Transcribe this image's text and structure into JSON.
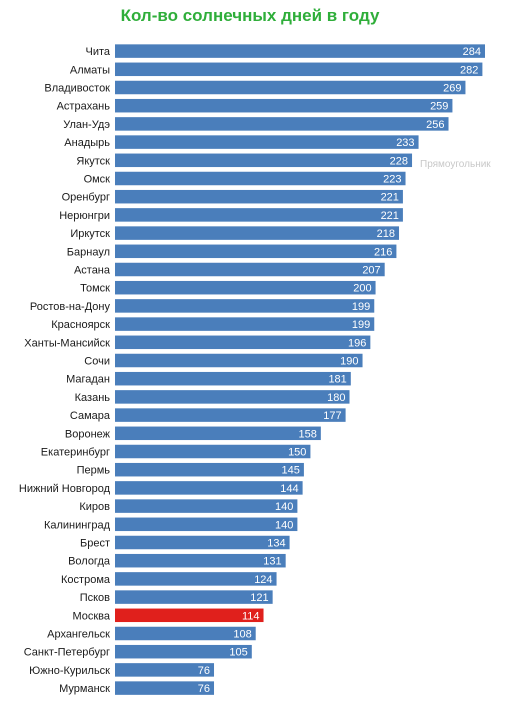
{
  "chart_data": {
    "type": "bar",
    "orientation": "horizontal",
    "title": "Кол-во солнечных дней в году",
    "categories": [
      "Чита",
      "Алматы",
      "Владивосток",
      "Астрахань",
      "Улан-Удэ",
      "Анадырь",
      "Якутск",
      "Омск",
      "Оренбург",
      "Нерюнгри",
      "Иркутск",
      "Барнаул",
      "Астана",
      "Томск",
      "Ростов-на-Дону",
      "Красноярск",
      "Ханты-Мансийск",
      "Сочи",
      "Магадан",
      "Казань",
      "Самара",
      "Воронеж",
      "Екатеринбург",
      "Пермь",
      "Нижний Новгород",
      "Киров",
      "Калининград",
      "Брест",
      "Вологда",
      "Кострома",
      "Псков",
      "Москва",
      "Архангельск",
      "Санкт-Петербург",
      "Южно-Курильск",
      "Мурманск"
    ],
    "values": [
      284,
      282,
      269,
      259,
      256,
      233,
      228,
      223,
      221,
      221,
      218,
      216,
      207,
      200,
      199,
      199,
      196,
      190,
      181,
      180,
      177,
      158,
      150,
      145,
      144,
      140,
      140,
      134,
      131,
      124,
      121,
      114,
      108,
      105,
      76,
      76
    ],
    "highlight_category": "Москва",
    "colors": {
      "bar": "#4a7ebb",
      "highlight": "#e0201c",
      "title": "#2fae3a"
    },
    "xlabel": "",
    "ylabel": "",
    "grid": false,
    "legend": "none"
  },
  "overlay_text": "Прямоугольник"
}
